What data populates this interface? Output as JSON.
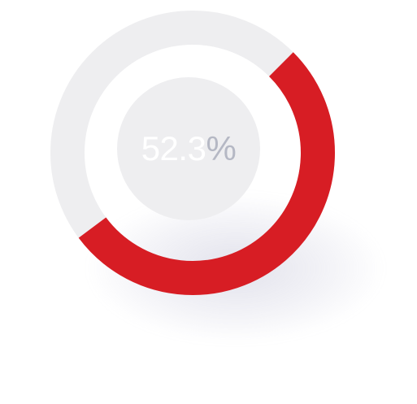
{
  "gauge": {
    "value": 52.3,
    "value_text": "52.3",
    "unit": "%",
    "progress_color": "#d71d24",
    "track_color": "#eeeef0",
    "center_color": "#eeeef0",
    "number_color": "#ffffff",
    "unit_color": "#b5b8c4"
  }
}
